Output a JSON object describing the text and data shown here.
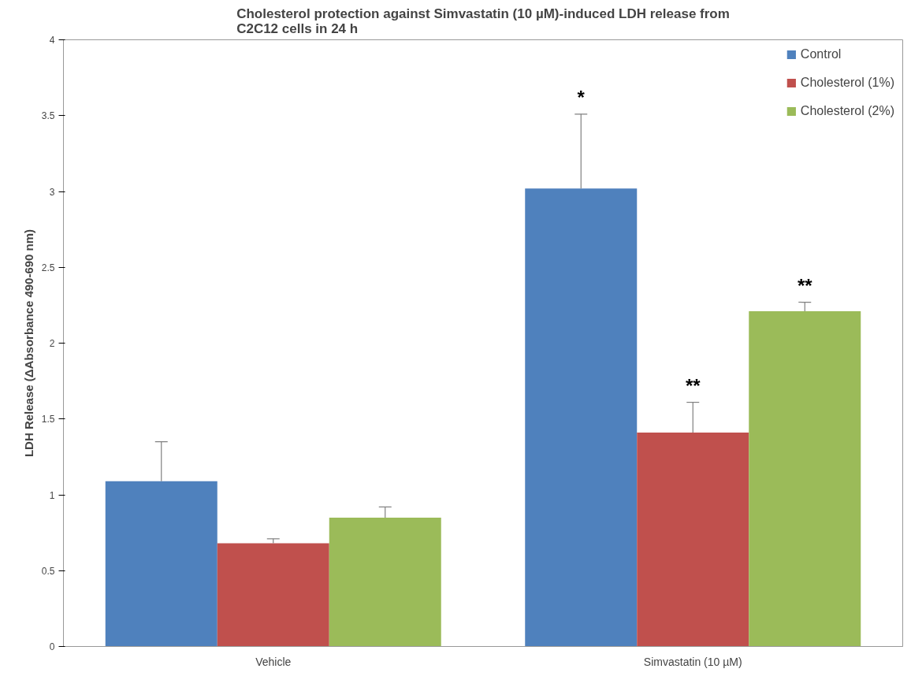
{
  "chart_data": {
    "type": "bar",
    "title": "Cholesterol protection against Simvastatin (10 µM)-induced LDH release from\nC2C12 cells in 24 h",
    "ylabel": "LDH Release (ΔAbsorbance 490-690 nm)",
    "categories": [
      "Vehicle",
      "Simvastatin (10 µM)"
    ],
    "series": [
      {
        "name": "Control",
        "color": "#4f81bd",
        "values": [
          1.09,
          3.02
        ],
        "errors": [
          0.26,
          0.49
        ]
      },
      {
        "name": "Cholesterol (1%)",
        "color": "#c0504d",
        "values": [
          0.68,
          1.41
        ],
        "errors": [
          0.03,
          0.2
        ]
      },
      {
        "name": "Cholesterol (2%)",
        "color": "#9bbb59",
        "values": [
          0.85,
          2.21
        ],
        "errors": [
          0.07,
          0.06
        ]
      }
    ],
    "ylim": [
      0,
      4
    ],
    "yticks": [
      0,
      0.5,
      1,
      1.5,
      2,
      2.5,
      3,
      3.5,
      4
    ],
    "grid": false,
    "legend": "top right",
    "annotations": [
      "*",
      "**",
      "**"
    ]
  }
}
